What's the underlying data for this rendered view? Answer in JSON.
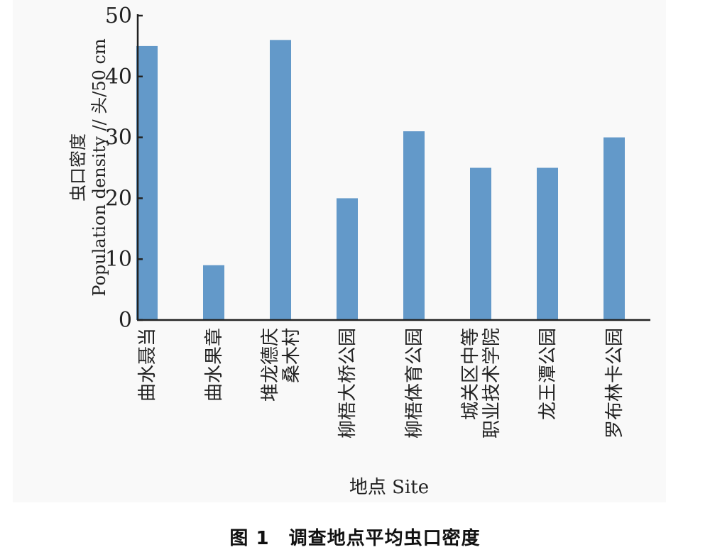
{
  "chart_data": {
    "type": "bar",
    "categories": [
      [
        "曲水聂当"
      ],
      [
        "曲水果章"
      ],
      [
        "堆龙德庆",
        "桑木村"
      ],
      [
        "柳梧大桥公园"
      ],
      [
        "柳梧体育公园"
      ],
      [
        "城关区中等",
        "职业技术学院"
      ],
      [
        "龙王潭公园"
      ],
      [
        "罗布林卡公园"
      ]
    ],
    "values": [
      45,
      9,
      46,
      20,
      31,
      25,
      25,
      30
    ],
    "ylim": [
      0,
      50
    ],
    "yticks": [
      0,
      10,
      20,
      30,
      40,
      50
    ],
    "ylabel_cn": "虫口密度",
    "ylabel_en": "Population density // 头/50 cm",
    "xlabel": "地点 Site",
    "bar_color": "#6399c9",
    "grid": false
  },
  "caption": "图 1　调查地点平均虫口密度"
}
